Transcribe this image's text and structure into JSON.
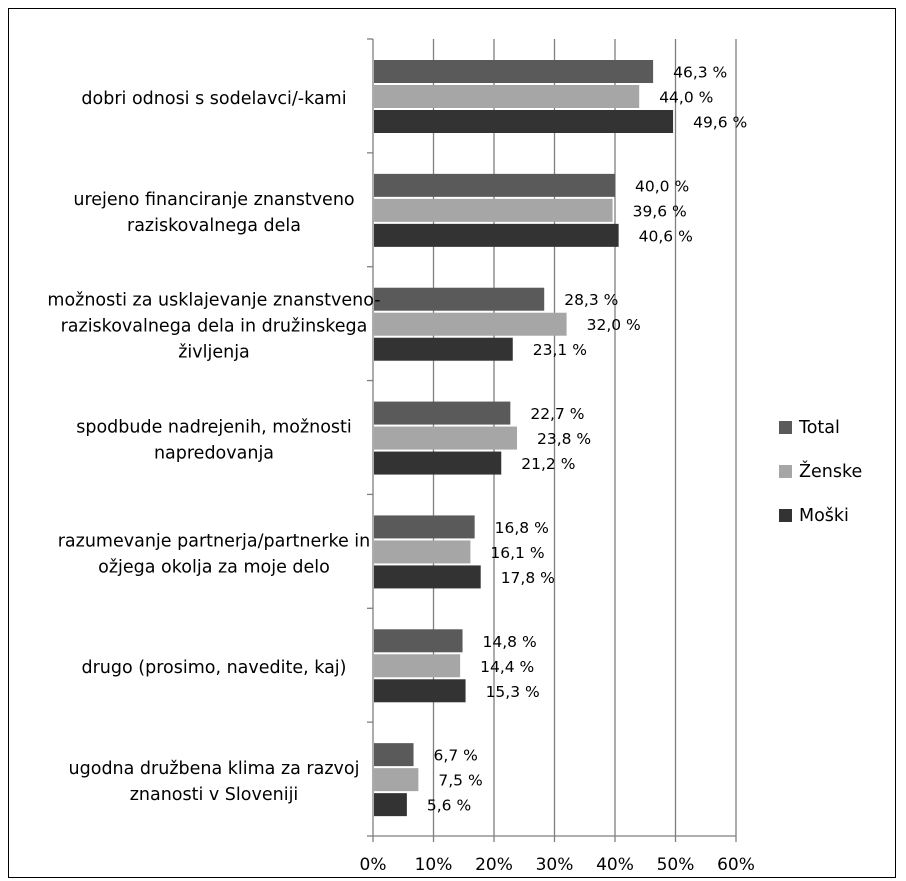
{
  "chart_data": {
    "type": "bar",
    "orientation": "horizontal",
    "categories": [
      [
        "dobri odnosi s sodelavci/-kami"
      ],
      [
        "urejeno financiranje znanstveno",
        "raziskovalnega dela"
      ],
      [
        "možnosti za usklajevanje znanstveno-",
        "raziskovalnega dela in družinskega",
        "življenja"
      ],
      [
        "spodbude nadrejenih, možnosti",
        "napredovanja"
      ],
      [
        "razumevanje partnerja/partnerke in",
        "ožjega okolja za moje delo"
      ],
      [
        "drugo (prosimo, navedite, kaj)"
      ],
      [
        "ugodna družbena klima za razvoj",
        "znanosti v Sloveniji"
      ]
    ],
    "series": [
      {
        "name": "Total",
        "color": "#5a5a5a",
        "values": [
          46.3,
          40.0,
          28.3,
          22.7,
          16.8,
          14.8,
          6.7
        ],
        "labels": [
          "46,3 %",
          "40,0 %",
          "28,3 %",
          "22,7 %",
          "16,8 %",
          "14,8 %",
          "6,7 %"
        ]
      },
      {
        "name": "Ženske",
        "color": "#a6a6a6",
        "values": [
          44.0,
          39.6,
          32.0,
          23.8,
          16.1,
          14.4,
          7.5
        ],
        "labels": [
          "44,0 %",
          "39,6 %",
          "32,0 %",
          "23,8 %",
          "16,1 %",
          "14,4 %",
          "7,5 %"
        ]
      },
      {
        "name": "Moški",
        "color": "#333333",
        "values": [
          49.6,
          40.6,
          23.1,
          21.2,
          17.8,
          15.3,
          5.6
        ],
        "labels": [
          "49,6 %",
          "40,6 %",
          "23,1 %",
          "21,2 %",
          "17,8 %",
          "15,3 %",
          "5,6 %"
        ]
      }
    ],
    "xlim": [
      0,
      60
    ],
    "xticks": [
      0,
      10,
      20,
      30,
      40,
      50,
      60
    ],
    "xtick_labels": [
      "0%",
      "10%",
      "20%",
      "30%",
      "40%",
      "50%",
      "60%"
    ],
    "grid": "vertical-major",
    "legend": "right"
  }
}
